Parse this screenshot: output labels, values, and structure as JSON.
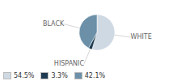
{
  "chart_data": {
    "type": "pie",
    "categories": [
      "WHITE",
      "HISPANIC",
      "BLACK"
    ],
    "values": [
      54.5,
      3.3,
      42.1
    ],
    "value_labels": [
      "54.5%",
      "3.3%",
      "42.1%"
    ],
    "colors": [
      "#cfd9e3",
      "#1e3a50",
      "#6b90a8"
    ],
    "legend": "lower left"
  }
}
